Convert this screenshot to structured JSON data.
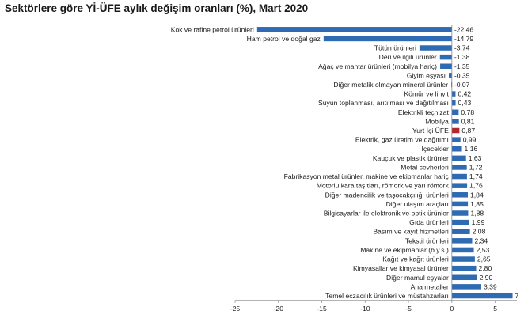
{
  "chart_data": {
    "type": "bar",
    "orientation": "horizontal",
    "title": "Sektörlere göre Yİ-ÜFE aylık değişim oranları (%), Mart 2020",
    "categories": [
      "Kok ve rafine petrol ürünleri",
      "Ham petrol ve doğal gaz",
      "Tütün ürünleri",
      "Deri ve ilgili ürünler",
      "Ağaç ve mantar ürünleri (mobilya hariç)",
      "Giyim eşyası",
      "Diğer metalik olmayan mineral ürünler",
      "Kömür ve linyit",
      "Suyun toplanması, arıtılması ve dağıtılması",
      "Elektrikli teçhizat",
      "Mobilya",
      "Yurt İçi ÜFE",
      "Elektrik, gaz üretim ve dağıtımı",
      "İçecekler",
      "Kauçuk ve plastik ürünler",
      "Metal cevherleri",
      "Fabrikasyon metal ürünler, makine ve ekipmanlar hariç",
      "Motorlu kara taşıtları, römork ve yarı römork",
      "Diğer madencilik ve taşocakçılığı ürünleri",
      "Diğer ulaşım araçları",
      "Bilgisayarlar ile elektronik ve optik ürünler",
      "Gıda ürünleri",
      "Basım ve kayıt hizmetleri",
      "Tekstil ürünleri",
      "Makine ve ekipmanlar (b.y.s.)",
      "Kağıt ve kağıt ürünleri",
      "Kimyasallar ve kimyasal ürünler",
      "Diğer mamul eşyalar",
      "Ana metaller",
      "Temel eczacılık ürünleri ve müstahzarları"
    ],
    "values": [
      -22.46,
      -14.79,
      -3.74,
      -1.38,
      -1.35,
      -0.35,
      -0.07,
      0.42,
      0.43,
      0.78,
      0.81,
      0.87,
      0.99,
      1.16,
      1.63,
      1.72,
      1.74,
      1.76,
      1.84,
      1.85,
      1.88,
      1.99,
      2.08,
      2.34,
      2.53,
      2.65,
      2.8,
      2.9,
      3.39,
      7
    ],
    "value_labels": [
      "-22,46",
      "-14,79",
      "-3,74",
      "-1,38",
      "-1,35",
      "-0,35",
      "-0,07",
      "0,42",
      "0,43",
      "0,78",
      "0,81",
      "0,87",
      "0,99",
      "1,16",
      "1,63",
      "1,72",
      "1,74",
      "1,76",
      "1,84",
      "1,85",
      "1,88",
      "1,99",
      "2,08",
      "2,34",
      "2,53",
      "2,65",
      "2,80",
      "2,90",
      "3,39",
      "7"
    ],
    "highlight_index": 11,
    "xlim": [
      -25,
      7.5
    ],
    "x_ticks": [
      -25,
      -20,
      -15,
      -10,
      -5,
      0,
      5
    ],
    "x_tick_labels": [
      "-25",
      "-20",
      "-15",
      "-10",
      "-5",
      "0",
      "5"
    ],
    "xlabel": "",
    "ylabel": "",
    "grid": false,
    "colors": {
      "bar": "#2e6bb3",
      "highlight": "#b3262e",
      "axis": "#888888",
      "text": "#1a1a1a"
    }
  }
}
